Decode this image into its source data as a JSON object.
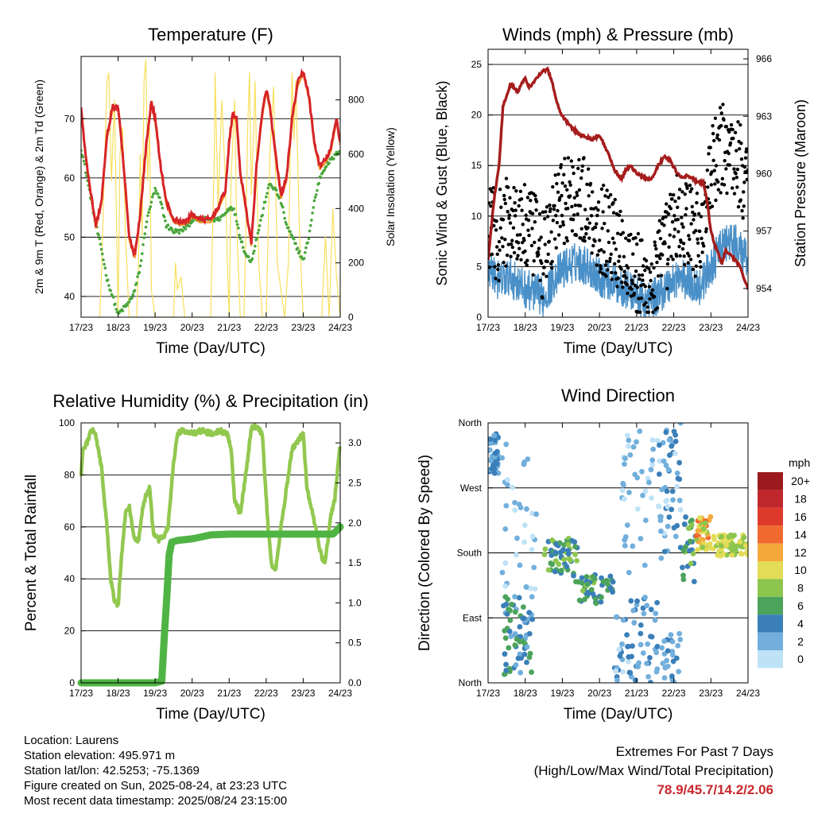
{
  "x_ticks": [
    "17/23",
    "18/23",
    "19/23",
    "20/23",
    "21/23",
    "22/23",
    "23/23",
    "24/23"
  ],
  "chart_data": [
    {
      "type": "line",
      "title": "Temperature (F)",
      "xlabel": "Time (Day/UTC)",
      "ylabel": "2m & 9m T (Red, Orange) & 2m Td (Green)",
      "y2label": "Solar Insolation (Yellow)",
      "ylim": [
        36.5,
        80.5
      ],
      "yticks": [
        40,
        50,
        60,
        70
      ],
      "y2lim": [
        0,
        960
      ],
      "y2ticks": [
        0,
        200,
        400,
        600,
        800
      ],
      "grid": true,
      "colors": {
        "t2m": "#d62428",
        "t9m": "#f28a1a",
        "td": "#4aa63c",
        "solar": "#f9df5e"
      },
      "t_x": [
        0,
        0.1,
        0.25,
        0.4,
        0.55,
        0.7,
        0.85,
        1,
        1.15,
        1.3,
        1.45,
        1.6,
        1.75,
        1.9,
        2,
        2.15,
        2.3,
        2.5,
        2.7,
        2.9,
        3,
        3.2,
        3.5,
        3.7,
        3.9,
        4,
        4.1,
        4.2,
        4.3,
        4.45,
        4.6,
        4.75,
        4.9,
        5,
        5.1,
        5.25,
        5.4,
        5.55,
        5.7,
        5.85,
        6,
        6.15,
        6.3,
        6.45,
        6.6,
        6.75,
        6.9,
        7
      ],
      "t_y": [
        72,
        65,
        58,
        52,
        56,
        67,
        72,
        72,
        62,
        50,
        47,
        54,
        65,
        73,
        70,
        62,
        56,
        53,
        52.5,
        53,
        54,
        53,
        53,
        55,
        58,
        66,
        71,
        70,
        61,
        55,
        49,
        63,
        71,
        75,
        72,
        64,
        57,
        60,
        70,
        76,
        78,
        74,
        66,
        62,
        63,
        65,
        70,
        66
      ],
      "td_y": [
        65,
        62,
        57,
        52,
        48,
        43,
        40,
        37,
        38,
        39,
        41,
        45,
        52,
        56,
        58,
        56,
        52,
        51,
        51,
        52,
        53,
        53,
        53,
        53,
        54,
        55,
        55,
        53,
        50,
        47,
        46,
        50,
        54,
        57,
        59,
        58,
        56,
        52,
        50,
        48,
        46,
        50,
        56,
        60,
        62,
        63,
        64,
        65
      ],
      "solar_x": [
        0.5,
        0.55,
        0.62,
        0.7,
        0.75,
        0.82,
        0.9,
        1.0,
        1.05,
        1.12,
        1.2,
        1.3,
        1.5,
        1.55,
        1.6,
        1.65,
        1.7,
        1.75,
        1.8,
        1.85,
        1.9,
        2.0,
        2.5,
        2.55,
        2.6,
        2.7,
        2.8,
        3.5,
        3.55,
        3.6,
        3.62,
        3.7,
        3.8,
        3.9,
        3.95,
        4.0,
        4.05,
        4.15,
        4.2,
        4.3,
        4.4,
        4.45,
        4.5,
        4.55,
        4.6,
        4.65,
        4.7,
        4.75,
        4.8,
        4.9,
        5.0,
        5.1,
        5.2,
        5.3,
        5.5,
        5.6,
        5.65,
        5.7,
        5.75,
        5.8,
        5.9,
        6.0,
        6.1,
        6.2,
        6.3,
        6.4,
        6.5,
        6.6,
        6.7,
        6.8,
        6.9,
        7.0
      ],
      "solar_y": [
        0,
        150,
        500,
        870,
        900,
        500,
        800,
        0,
        600,
        700,
        300,
        0,
        0,
        200,
        600,
        300,
        870,
        950,
        500,
        700,
        100,
        0,
        0,
        200,
        100,
        150,
        0,
        0,
        300,
        600,
        900,
        400,
        800,
        500,
        200,
        0,
        500,
        800,
        350,
        0,
        0,
        300,
        700,
        900,
        450,
        650,
        870,
        500,
        200,
        0,
        0,
        600,
        850,
        200,
        0,
        200,
        600,
        900,
        650,
        870,
        300,
        0,
        0,
        0,
        0,
        0,
        0,
        300,
        0,
        400,
        150,
        0
      ]
    },
    {
      "type": "line",
      "title": "Winds (mph) & Pressure (mb)",
      "xlabel": "Time (Day/UTC)",
      "ylabel": "Sonic Wind & Gust (Blue, Black)",
      "y2label": "Station Pressure (Maroon)",
      "ylim": [
        0,
        26.5
      ],
      "yticks": [
        0,
        5,
        10,
        15,
        20,
        25
      ],
      "y2lim": [
        952.5,
        966.5
      ],
      "y2ticks": [
        954,
        957,
        960,
        963,
        966
      ],
      "grid": true,
      "colors": {
        "wind": "#4a90c8",
        "gust": "#000000",
        "pressure": "#a51c1c"
      },
      "p_x": [
        0,
        0.05,
        0.15,
        0.3,
        0.4,
        0.6,
        0.8,
        1.0,
        1.1,
        1.4,
        1.6,
        1.75,
        1.85,
        2.0,
        2.2,
        2.5,
        2.8,
        3.0,
        3.2,
        3.4,
        3.6,
        3.7,
        3.85,
        4.0,
        4.2,
        4.4,
        4.6,
        4.75,
        4.9,
        5.1,
        5.2,
        5.4,
        5.6,
        5.8,
        5.9,
        6.0,
        6.1,
        6.2,
        6.3,
        6.4,
        6.6,
        6.8,
        6.9,
        7.0
      ],
      "p_y": [
        955.5,
        956.5,
        958.5,
        960.5,
        963.5,
        964.7,
        964.3,
        965.0,
        964.5,
        965.2,
        965.5,
        964.6,
        963.7,
        963.0,
        962.5,
        962.0,
        961.8,
        962.0,
        961.2,
        960.2,
        959.7,
        960.2,
        960.4,
        960.0,
        959.8,
        959.7,
        960.5,
        960.9,
        960.7,
        960.0,
        959.8,
        959.9,
        959.6,
        959.5,
        958.5,
        957.0,
        956.3,
        955.8,
        955.3,
        956.0,
        955.6,
        955.1,
        954.5,
        954.0
      ],
      "w_x": [
        0,
        0.3,
        0.6,
        0.9,
        1.2,
        1.5,
        1.8,
        2.1,
        2.4,
        2.7,
        3.0,
        3.3,
        3.6,
        3.9,
        4.2,
        4.5,
        4.8,
        5.1,
        5.4,
        5.7,
        6.0,
        6.3,
        6.6,
        6.9,
        7.0
      ],
      "w_y": [
        5,
        3.5,
        4,
        3,
        2.5,
        2,
        4,
        5,
        5.5,
        5,
        4,
        3.5,
        3,
        2.5,
        1.5,
        2,
        3,
        4,
        3.5,
        3,
        5,
        7,
        7.5,
        6,
        5
      ],
      "g_y": [
        9,
        8,
        10,
        9,
        8,
        6,
        10,
        12,
        12,
        11,
        9,
        8,
        7,
        5,
        3,
        4,
        7,
        10,
        9,
        8,
        14,
        17,
        16,
        14,
        12
      ]
    },
    {
      "type": "line",
      "title": "Relative Humidity (%) & Precipitation (in)",
      "xlabel": "Time (Day/UTC)",
      "ylabel": "Percent & Total Rainfall",
      "ylim": [
        0,
        100
      ],
      "yticks": [
        0,
        20,
        40,
        60,
        80,
        100
      ],
      "y2lim": [
        0,
        3.25
      ],
      "y2ticks": [
        "0.0",
        "0.5",
        "1.0",
        "1.5",
        "2.0",
        "2.5",
        "3.0"
      ],
      "grid": true,
      "colors": {
        "rh": "#92c84f",
        "precip": "#4fb443"
      },
      "rh_x": [
        0,
        0.05,
        0.15,
        0.3,
        0.4,
        0.55,
        0.7,
        0.8,
        0.9,
        1.0,
        1.1,
        1.2,
        1.3,
        1.45,
        1.55,
        1.7,
        1.85,
        1.95,
        2.1,
        2.25,
        2.35,
        2.5,
        2.6,
        2.75,
        3.0,
        3.25,
        3.5,
        3.75,
        3.95,
        4.05,
        4.15,
        4.3,
        4.45,
        4.6,
        4.75,
        4.9,
        5.05,
        5.15,
        5.25,
        5.4,
        5.55,
        5.7,
        5.85,
        6.0,
        6.1,
        6.3,
        6.5,
        6.6,
        6.75,
        6.85,
        6.95,
        7.0
      ],
      "rh_y": [
        80,
        90,
        92,
        98,
        95,
        83,
        60,
        40,
        32,
        30,
        50,
        65,
        68,
        55,
        55,
        70,
        75,
        58,
        55,
        57,
        60,
        85,
        96,
        97,
        96,
        97,
        96,
        97,
        96,
        90,
        70,
        65,
        80,
        98,
        99,
        95,
        60,
        45,
        43,
        60,
        75,
        90,
        93,
        96,
        75,
        62,
        48,
        47,
        65,
        70,
        85,
        92
      ],
      "pr_x": [
        0,
        0.5,
        1.0,
        1.5,
        2.0,
        2.18,
        2.25,
        2.32,
        2.38,
        2.45,
        2.6,
        3.0,
        3.5,
        4.0,
        5.0,
        6.0,
        6.8,
        6.9,
        7.0
      ],
      "pr_y": [
        0,
        0,
        0,
        0,
        0,
        0.02,
        0.6,
        1.1,
        1.6,
        1.76,
        1.78,
        1.8,
        1.85,
        1.86,
        1.86,
        1.86,
        1.86,
        1.9,
        1.95
      ]
    },
    {
      "type": "scatter",
      "title": "Wind Direction",
      "xlabel": "Time (Day/UTC)",
      "ylabel": "Direction (Colored By Speed)",
      "ytick_labels": [
        "North",
        "East",
        "South",
        "West",
        "North"
      ],
      "ylim": [
        0,
        360
      ],
      "grid": true,
      "legend_title": "mph",
      "legend_labels": [
        "20+",
        "18",
        "16",
        "14",
        "12",
        "10",
        "8",
        "6",
        "4",
        "2",
        "0"
      ],
      "legend_colors": [
        "#9b1a1e",
        "#c0272d",
        "#de3a2c",
        "#f0692f",
        "#f6a83b",
        "#e3dc56",
        "#8dc64f",
        "#4ca35b",
        "#3a7fb9",
        "#72afdc",
        "#bfe2f7"
      ],
      "clusters": [
        {
          "x": [
            0.0,
            0.3
          ],
          "y": [
            290,
            345
          ],
          "n": 45,
          "s": [
            2,
            5
          ]
        },
        {
          "x": [
            0.4,
            1.2
          ],
          "y": [
            10,
            120
          ],
          "n": 70,
          "s": [
            2,
            7
          ]
        },
        {
          "x": [
            0.3,
            1.3
          ],
          "y": [
            130,
            350
          ],
          "n": 35,
          "s": [
            0,
            3
          ]
        },
        {
          "x": [
            1.5,
            2.4
          ],
          "y": [
            150,
            200
          ],
          "n": 55,
          "s": [
            3,
            9
          ]
        },
        {
          "x": [
            2.3,
            3.4
          ],
          "y": [
            110,
            150
          ],
          "n": 50,
          "s": [
            3,
            8
          ]
        },
        {
          "x": [
            3.4,
            4.6
          ],
          "y": [
            0,
            120
          ],
          "n": 65,
          "s": [
            0,
            5
          ]
        },
        {
          "x": [
            3.6,
            4.7
          ],
          "y": [
            150,
            360
          ],
          "n": 45,
          "s": [
            0,
            3
          ]
        },
        {
          "x": [
            4.6,
            5.2
          ],
          "y": [
            180,
            360
          ],
          "n": 50,
          "s": [
            0,
            5
          ]
        },
        {
          "x": [
            4.6,
            5.2
          ],
          "y": [
            0,
            80
          ],
          "n": 25,
          "s": [
            1,
            4
          ]
        },
        {
          "x": [
            5.2,
            5.6
          ],
          "y": [
            140,
            230
          ],
          "n": 25,
          "s": [
            3,
            8
          ]
        },
        {
          "x": [
            5.6,
            6.0
          ],
          "y": [
            180,
            230
          ],
          "n": 40,
          "s": [
            8,
            14
          ]
        },
        {
          "x": [
            6.0,
            7.0
          ],
          "y": [
            175,
            205
          ],
          "n": 70,
          "s": [
            7,
            11
          ]
        }
      ]
    }
  ],
  "footer": {
    "location": "Location: Laurens",
    "elevation": "Station elevation: 495.971 m",
    "latlon": "Station lat/lon: 42.5253; -75.1369",
    "created": "Figure created on Sun, 2025-08-24, at 23:23 UTC",
    "recent": "Most recent data timestamp: 2025/08/24 23:15:00"
  },
  "extremes": {
    "line1": "Extremes For Past 7 Days",
    "line2": "(High/Low/Max Wind/Total Precipitation)",
    "values": "78.9/45.7/14.2/2.06"
  }
}
